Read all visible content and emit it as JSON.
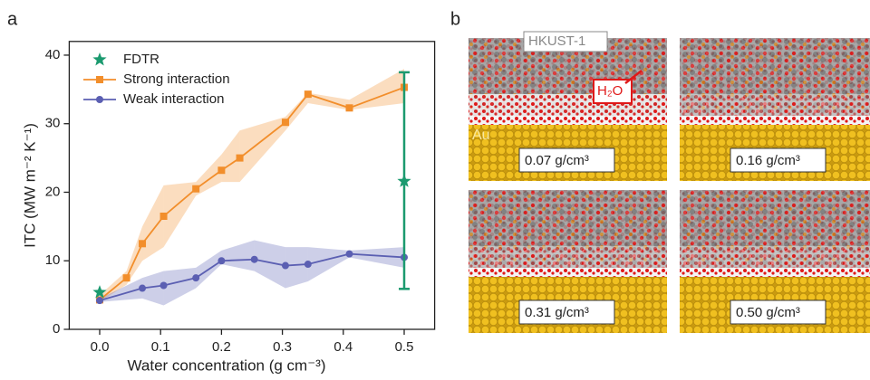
{
  "figure": {
    "panel_labels": [
      "a",
      "b"
    ]
  },
  "chart_data": {
    "type": "line",
    "xlabel": "Water concentration (g cm⁻³)",
    "ylabel": "ITC (MW m⁻² K⁻¹)",
    "xlim": [
      -0.05,
      0.55
    ],
    "ylim": [
      0,
      42
    ],
    "xticks": [
      {
        "value": 0,
        "label": "0.0"
      },
      0.1,
      0.2,
      0.3,
      0.4,
      0.5
    ],
    "yticks": [
      0,
      10,
      20,
      30,
      40
    ],
    "legend": "upper left",
    "series": [
      {
        "name": "Strong interaction",
        "color": "#f28e2b",
        "marker": "square",
        "x": [
          0.0,
          0.044,
          0.07,
          0.105,
          0.158,
          0.2,
          0.23,
          0.305,
          0.342,
          0.41,
          0.5
        ],
        "values": [
          4.3,
          7.5,
          12.5,
          16.5,
          20.5,
          23.2,
          25,
          30.2,
          34.3,
          32.3,
          35.3
        ],
        "lower": [
          4,
          6.5,
          10,
          12,
          19.5,
          21.5,
          21.5,
          29,
          33,
          32,
          33
        ],
        "upper": [
          5,
          8.5,
          15,
          21,
          21.5,
          25.5,
          29,
          31,
          34.5,
          33.5,
          38
        ]
      },
      {
        "name": "Weak interaction",
        "color": "#5b5fb2",
        "marker": "circle",
        "x": [
          0.0,
          0.07,
          0.105,
          0.158,
          0.2,
          0.254,
          0.305,
          0.342,
          0.41,
          0.5
        ],
        "values": [
          4.2,
          6,
          6.4,
          7.5,
          10,
          10.2,
          9.3,
          9.5,
          11,
          10.5
        ],
        "lower": [
          4,
          4.5,
          3.5,
          6,
          9.5,
          8.5,
          6,
          7,
          10.5,
          9
        ],
        "upper": [
          4.5,
          7.5,
          8.5,
          9,
          11.5,
          13,
          12,
          12,
          11.5,
          12
        ]
      }
    ],
    "points": {
      "name": "FDTR",
      "color": "#1b9a6f",
      "marker": "star",
      "x": [
        0.0,
        0.5
      ],
      "values": [
        5.4,
        21.6
      ],
      "lower": [
        null,
        5.9
      ],
      "upper": [
        null,
        37.5
      ]
    }
  },
  "simulation": {
    "labels": {
      "mof": "HKUST-1",
      "water": "H₂O",
      "substrate": "Au"
    },
    "panels": [
      "0.07 g/cm³",
      "0.16 g/cm³",
      "0.31 g/cm³",
      "0.50 g/cm³"
    ]
  }
}
